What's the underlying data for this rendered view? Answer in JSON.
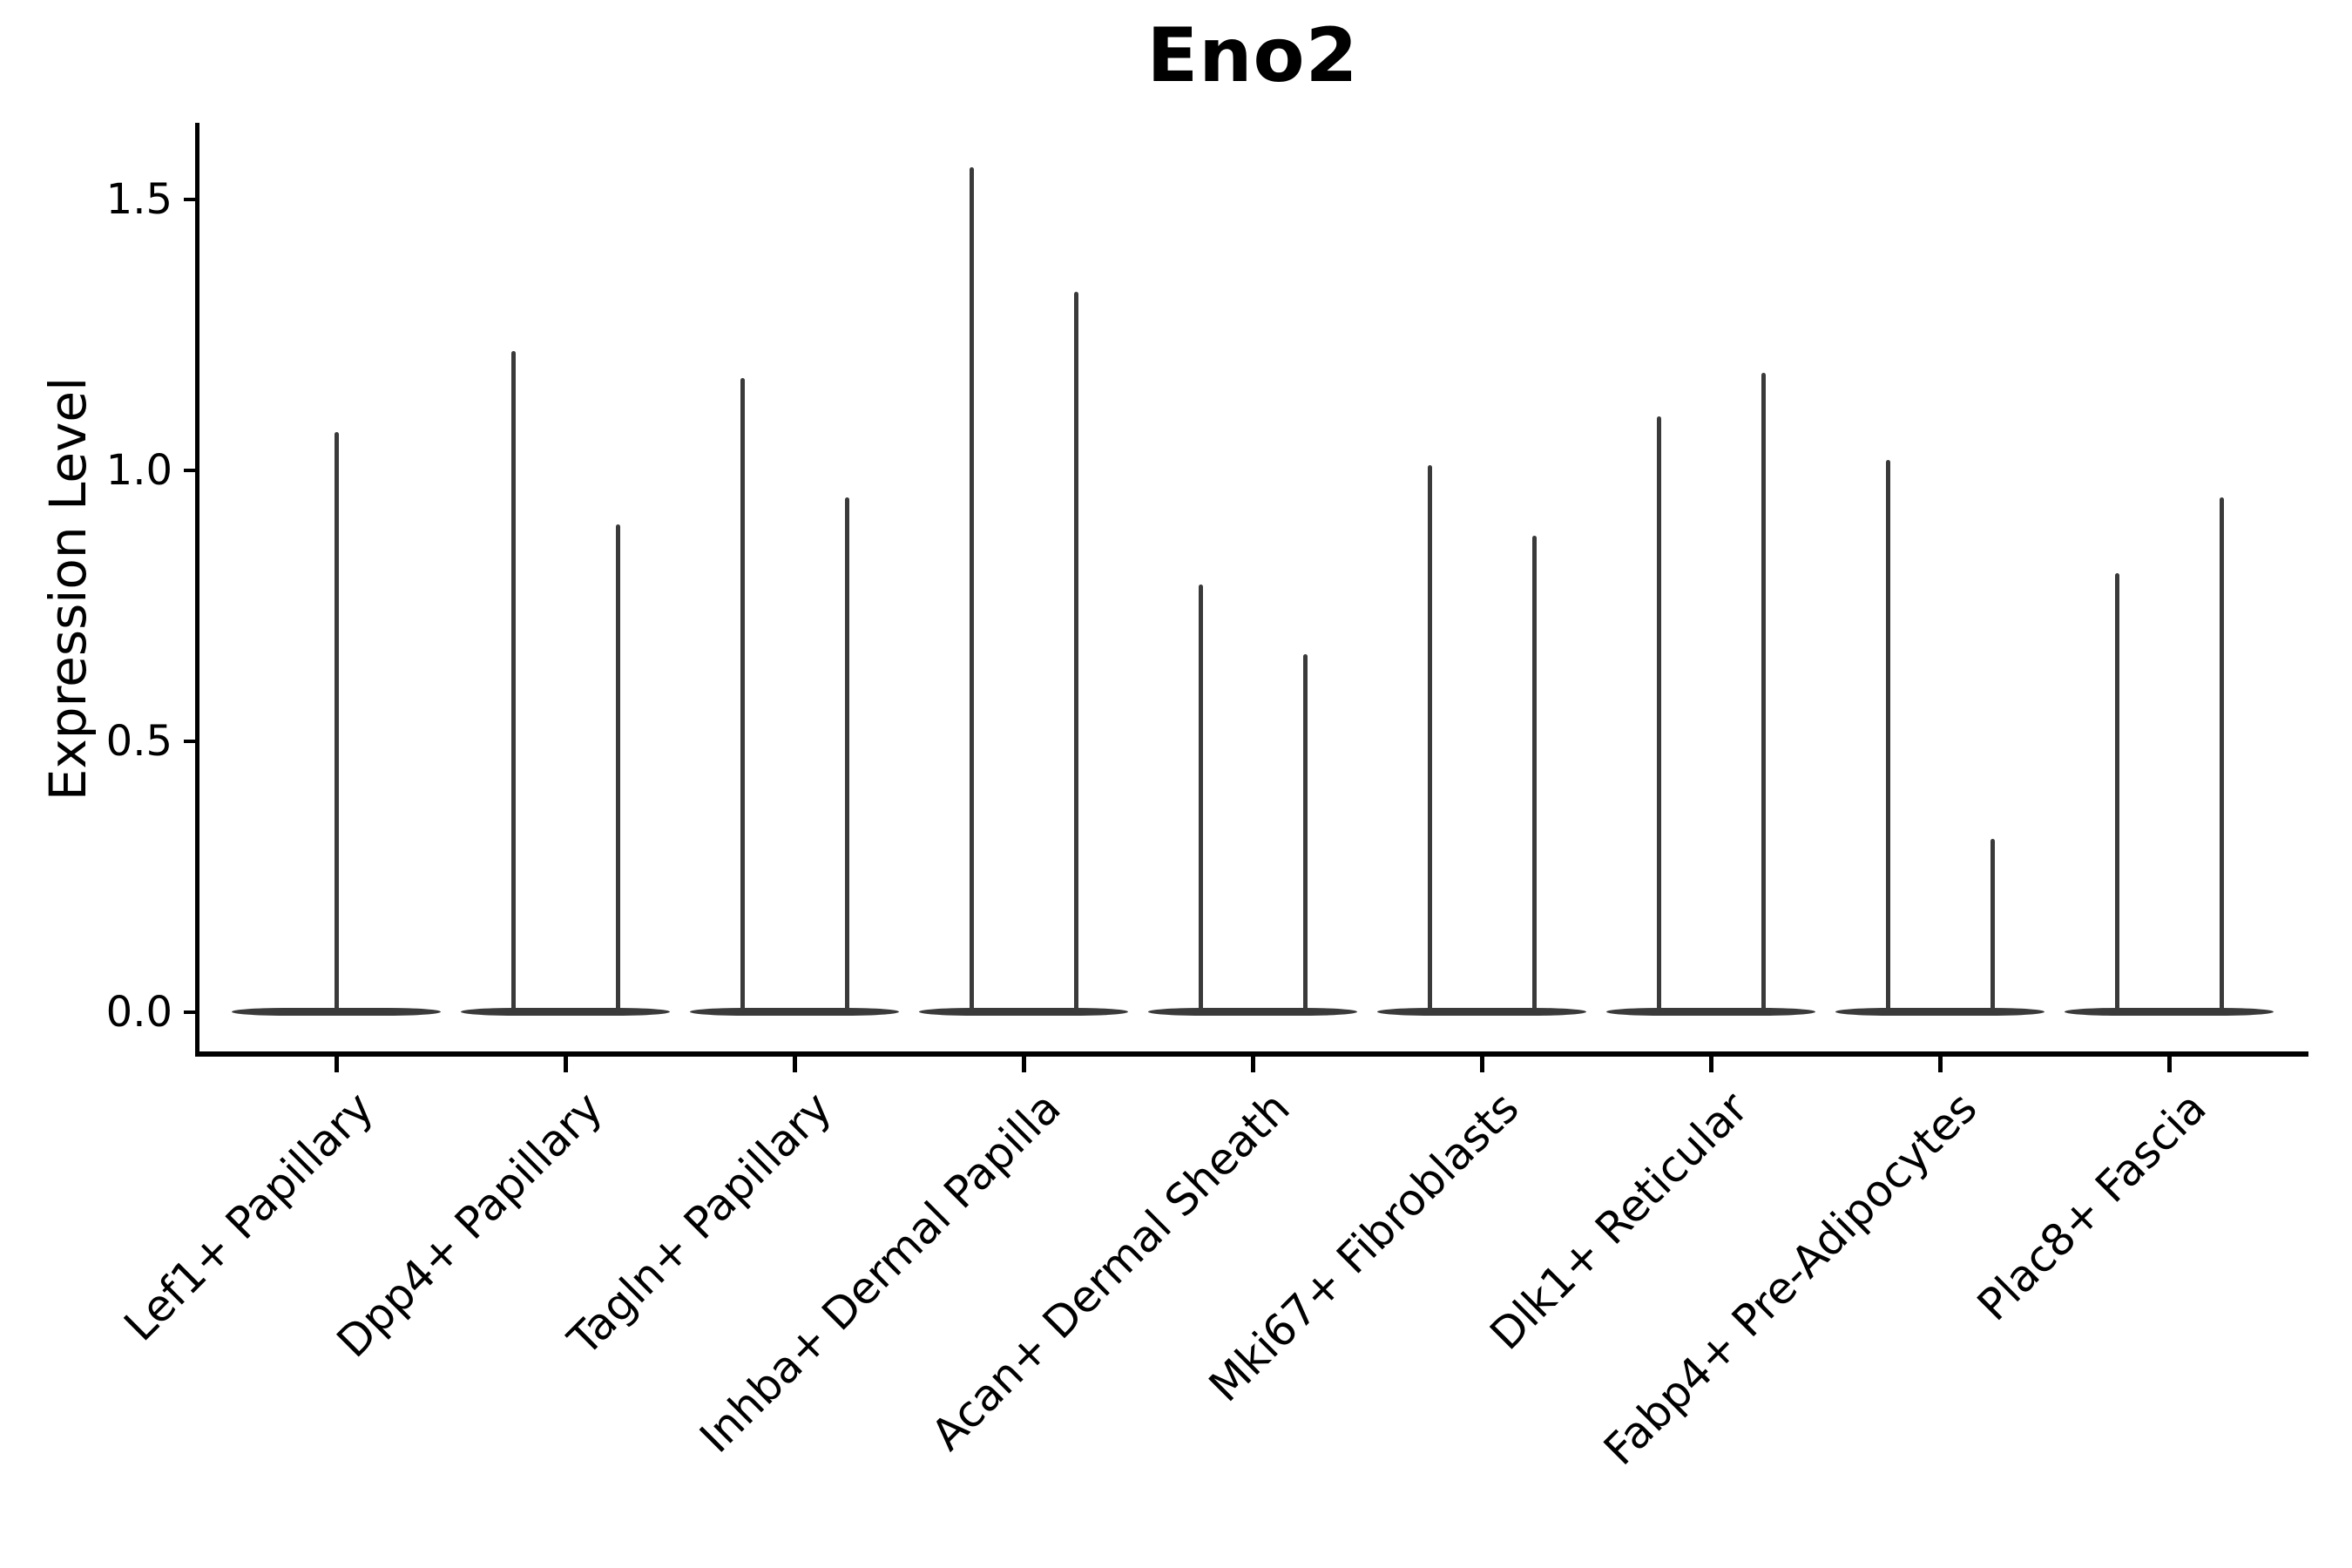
{
  "colors": {
    "background": "#ffffff",
    "axis": "#000000",
    "text": "#000000",
    "violin": "#3a3a3a"
  },
  "chart_data": {
    "type": "violin",
    "title": "Eno2",
    "xlabel": "",
    "ylabel": "Expression Level",
    "ylim": [
      -0.08,
      1.64
    ],
    "grid": false,
    "legend": "none",
    "ytick_values": [
      0.0,
      0.5,
      1.0,
      1.5
    ],
    "ytick_labels": [
      "0.0",
      "0.5",
      "1.0",
      "1.5"
    ],
    "note": "Each violin is collapsed to a flat base at expression 0 with a thin needle spike reaching its maximum expression value; categories with two values show two side-by-side needles",
    "categories": [
      {
        "label": "Lef1+ Papillary",
        "violin_max_values": [
          1.07
        ]
      },
      {
        "label": "Dpp4+ Papillary",
        "violin_max_values": [
          1.22,
          0.9
        ]
      },
      {
        "label": "Tagln+ Papillary",
        "violin_max_values": [
          1.17,
          0.95
        ]
      },
      {
        "label": "Inhba+ Dermal Papilla",
        "violin_max_values": [
          1.56,
          1.33
        ]
      },
      {
        "label": "Acan+ Dermal Sheath",
        "violin_max_values": [
          0.79,
          0.66
        ]
      },
      {
        "label": "Mki67+ Fibroblasts",
        "violin_max_values": [
          1.01,
          0.88
        ]
      },
      {
        "label": "Dlk1+ Reticular",
        "violin_max_values": [
          1.1,
          1.18
        ]
      },
      {
        "label": "Fabp4+ Pre-Adipocytes",
        "violin_max_values": [
          1.02,
          0.32
        ]
      },
      {
        "label": "Plac8+ Fascia",
        "violin_max_values": [
          0.81,
          0.95
        ]
      }
    ]
  }
}
